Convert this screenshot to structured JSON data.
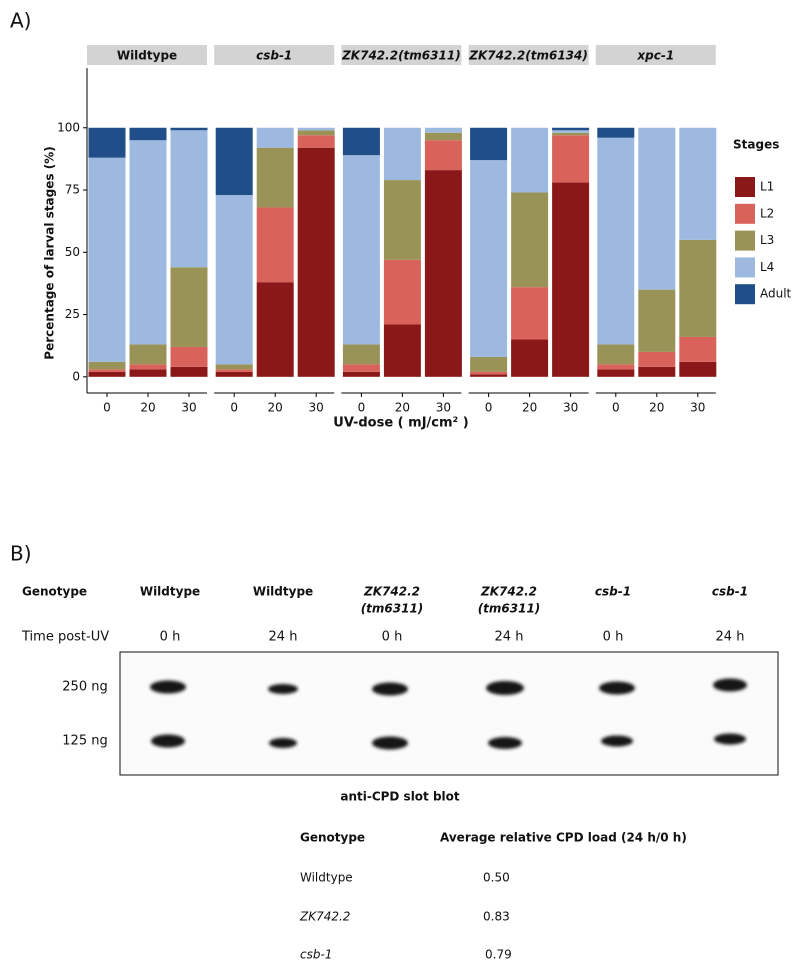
{
  "chart_data": {
    "type": "bar",
    "stacked": true,
    "panel_label": "A)",
    "y_label": "Percentage of larval stages (%)",
    "x_label": "UV-dose ( mJ/cm² )",
    "legend_title": "Stages",
    "ylim": [
      -6.5,
      124
    ],
    "yticks": [
      0,
      25,
      50,
      75,
      100
    ],
    "series": [
      {
        "name": "L1",
        "color": "#8a1818"
      },
      {
        "name": "L2",
        "color": "#d9625b"
      },
      {
        "name": "L3",
        "color": "#9a9358"
      },
      {
        "name": "L4",
        "color": "#9eb9df"
      },
      {
        "name": "Adult",
        "color": "#1f4e89"
      }
    ],
    "facets": [
      {
        "title": "Wildtype",
        "italic": false,
        "categories": [
          "0",
          "20",
          "30"
        ],
        "values": [
          [
            2,
            3,
            4
          ],
          [
            1,
            2,
            8
          ],
          [
            3,
            8,
            32
          ],
          [
            82,
            82,
            55
          ],
          [
            12,
            5,
            1
          ]
        ]
      },
      {
        "title": "csb-1",
        "italic": true,
        "categories": [
          "0",
          "20",
          "30"
        ],
        "values": [
          [
            2,
            38,
            92
          ],
          [
            1,
            30,
            5
          ],
          [
            2,
            24,
            2
          ],
          [
            68,
            8,
            1
          ],
          [
            27,
            0,
            0
          ]
        ]
      },
      {
        "title": "ZK742.2(tm6311)",
        "italic": true,
        "categories": [
          "0",
          "20",
          "30"
        ],
        "values": [
          [
            2,
            21,
            83
          ],
          [
            3,
            26,
            12
          ],
          [
            8,
            32,
            3
          ],
          [
            76,
            21,
            2
          ],
          [
            11,
            0,
            0
          ]
        ]
      },
      {
        "title": "ZK742.2(tm6134)",
        "italic": true,
        "categories": [
          "0",
          "20",
          "30"
        ],
        "values": [
          [
            1,
            15,
            78
          ],
          [
            1,
            21,
            19
          ],
          [
            6,
            38,
            1
          ],
          [
            79,
            26,
            1
          ],
          [
            13,
            0,
            1
          ]
        ]
      },
      {
        "title": "xpc-1",
        "italic": true,
        "categories": [
          "0",
          "20",
          "30"
        ],
        "values": [
          [
            3,
            4,
            6
          ],
          [
            2,
            6,
            10
          ],
          [
            8,
            25,
            39
          ],
          [
            83,
            65,
            45
          ],
          [
            4,
            0,
            0
          ]
        ]
      }
    ]
  },
  "panel_b": {
    "label": "B)",
    "genotype_label": "Genotype",
    "genotypes": [
      [
        "Wildtype"
      ],
      [
        "Wildtype"
      ],
      [
        "ZK742.2",
        "(tm6311)"
      ],
      [
        "ZK742.2",
        "(tm6311)"
      ],
      [
        "csb-1"
      ],
      [
        "csb-1"
      ]
    ],
    "time_label": "Time post-UV",
    "times": [
      "0 h",
      "24 h",
      "0 h",
      "24 h",
      "0 h",
      "24 h"
    ],
    "row_labels": [
      "250 ng",
      "125 ng"
    ],
    "caption": "anti-CPD slot blot"
  },
  "table": {
    "header": [
      "Genotype",
      "Average relative CPD load (24 h/0 h)"
    ],
    "rows": [
      [
        "Wildtype",
        "0.50"
      ],
      [
        "ZK742.2",
        "0.83"
      ],
      [
        "csb-1",
        "0.79"
      ]
    ]
  }
}
